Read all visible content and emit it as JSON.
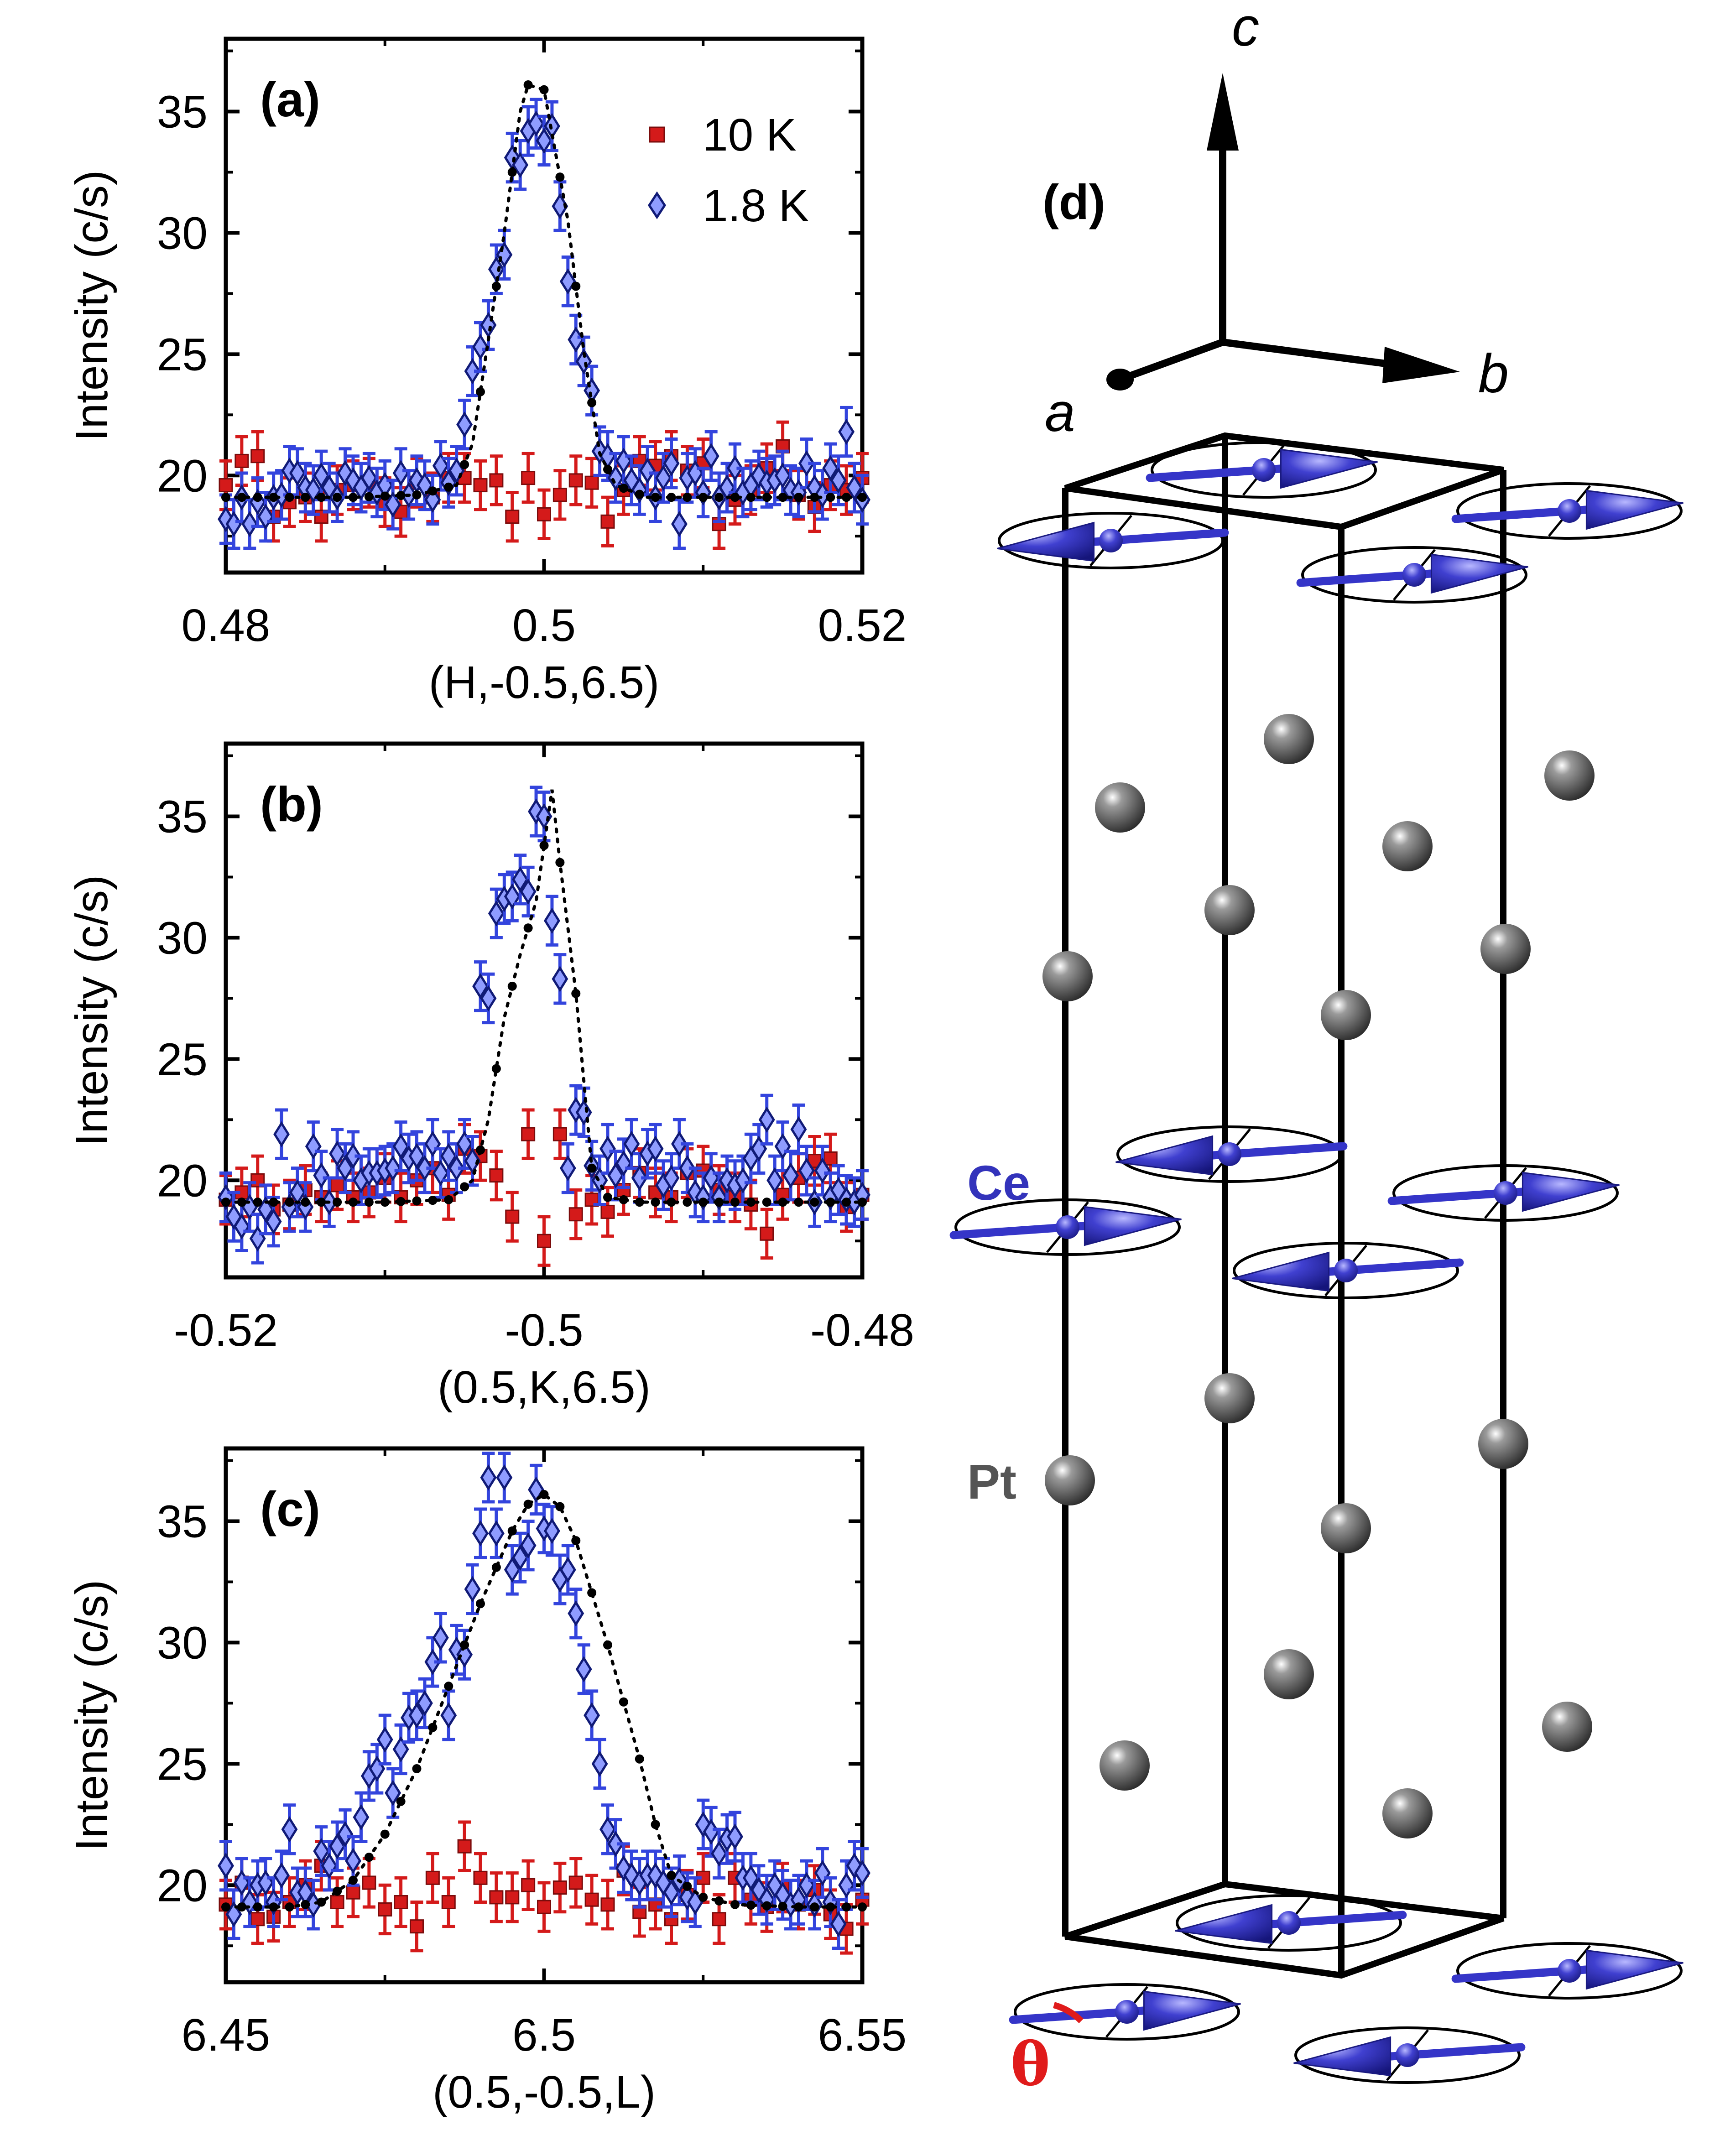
{
  "colors": {
    "series_10K": "#d41a1a",
    "series_10K_dark": "#7a0c0c",
    "series_1p8K": "#3344dd",
    "series_1p8K_dark": "#101a77",
    "fit": "#000000",
    "spin": "#3535c8",
    "atom": "#5a5a5a",
    "theta": "#e01b1b"
  },
  "legend": {
    "items": [
      {
        "label": "10 K",
        "marker": "square"
      },
      {
        "label": "1.8 K",
        "marker": "diamond"
      }
    ]
  },
  "chart_data": [
    {
      "panel": "(a)",
      "type": "scatter",
      "xlabel": "(H,-0.5,6.5)",
      "ylabel": "Intensity (c/s)",
      "xlim": [
        0.48,
        0.52
      ],
      "ylim": [
        16,
        38
      ],
      "xticks": [
        "0.48",
        "0.5",
        "0.52"
      ],
      "yticks": [
        "20",
        "25",
        "30",
        "35"
      ],
      "series": [
        {
          "name": "10 K",
          "marker": "square",
          "x": [
            0.48,
            0.481,
            0.482,
            0.483,
            0.484,
            0.485,
            0.486,
            0.487,
            0.488,
            0.489,
            0.49,
            0.491,
            0.492,
            0.493,
            0.494,
            0.495,
            0.496,
            0.497,
            0.498,
            0.499,
            0.5,
            0.501,
            0.502,
            0.503,
            0.504,
            0.505,
            0.506,
            0.507,
            0.508,
            0.509,
            0.51,
            0.511,
            0.512,
            0.513,
            0.514,
            0.515,
            0.516,
            0.517,
            0.518,
            0.519,
            0.52
          ],
          "y": [
            19.6,
            20.6,
            20.8,
            18.3,
            18.9,
            19.1,
            18.3,
            19.4,
            19.6,
            19.7,
            18.9,
            18.5,
            19.7,
            19.1,
            19.9,
            19.9,
            19.6,
            19.8,
            18.3,
            19.9,
            18.4,
            19.2,
            19.8,
            19.7,
            18.1,
            19.4,
            20.6,
            20.4,
            20.8,
            20.2,
            20.5,
            18.0,
            19.0,
            19.4,
            20.3,
            21.2,
            19.2,
            18.7,
            19.6,
            19.4,
            19.9
          ],
          "err": 1.0
        },
        {
          "name": "1.8 K",
          "marker": "diamond",
          "x": [
            0.48,
            0.4805,
            0.481,
            0.4815,
            0.482,
            0.4825,
            0.483,
            0.4835,
            0.484,
            0.4845,
            0.485,
            0.4855,
            0.486,
            0.4865,
            0.487,
            0.4875,
            0.488,
            0.4885,
            0.489,
            0.4895,
            0.49,
            0.4905,
            0.491,
            0.4915,
            0.492,
            0.4925,
            0.493,
            0.4935,
            0.494,
            0.4945,
            0.495,
            0.4955,
            0.496,
            0.4965,
            0.497,
            0.4975,
            0.498,
            0.4985,
            0.499,
            0.4995,
            0.5,
            0.5005,
            0.501,
            0.5015,
            0.502,
            0.5025,
            0.503,
            0.5035,
            0.504,
            0.5045,
            0.505,
            0.5055,
            0.506,
            0.5065,
            0.507,
            0.5075,
            0.508,
            0.5085,
            0.509,
            0.5095,
            0.51,
            0.5105,
            0.511,
            0.5115,
            0.512,
            0.5125,
            0.513,
            0.5135,
            0.514,
            0.5145,
            0.515,
            0.5155,
            0.516,
            0.5165,
            0.517,
            0.5175,
            0.518,
            0.5185,
            0.519,
            0.5195,
            0.52
          ],
          "y": [
            18.2,
            18.0,
            19.1,
            18.0,
            18.9,
            18.3,
            19.1,
            19.2,
            20.2,
            20.1,
            19.5,
            19.4,
            20.0,
            19.5,
            19.1,
            20.1,
            19.8,
            19.5,
            19.9,
            19.3,
            19.6,
            18.8,
            20.1,
            19.2,
            19.8,
            19.6,
            19.0,
            20.4,
            19.7,
            20.2,
            22.1,
            24.3,
            25.3,
            26.2,
            28.5,
            29.1,
            33.1,
            32.8,
            34.2,
            34.5,
            33.8,
            34.4,
            31.1,
            28.0,
            25.6,
            24.7,
            23.5,
            21.0,
            20.8,
            19.9,
            20.6,
            19.8,
            19.4,
            20.2,
            19.1,
            19.9,
            20.5,
            18.0,
            19.9,
            20.1,
            19.3,
            20.8,
            19.1,
            19.5,
            20.3,
            19.3,
            19.6,
            20.0,
            19.7,
            19.8,
            20.0,
            19.4,
            19.3,
            20.5,
            19.5,
            19.2,
            20.3,
            19.8,
            21.8,
            19.5,
            19.0
          ],
          "err": 1.0
        },
        {
          "name": "",
          "marker": "dotted-line",
          "x": [
            0.48,
            0.484,
            0.488,
            0.492,
            0.4945,
            0.4955,
            0.4965,
            0.4975,
            0.4985,
            0.499,
            0.5,
            0.5015,
            0.5025,
            0.5035,
            0.5045,
            0.5065,
            0.509,
            0.512,
            0.516,
            0.52
          ],
          "y": [
            19.1,
            19.1,
            19.1,
            19.2,
            19.6,
            21.3,
            25.6,
            30.0,
            35.0,
            36.1,
            35.9,
            30.5,
            25.1,
            20.9,
            19.6,
            19.1,
            19.1,
            19.1,
            19.1,
            19.1
          ]
        }
      ]
    },
    {
      "panel": "(b)",
      "type": "scatter",
      "xlabel": "(0.5,K,6.5)",
      "ylabel": "Intensity (c/s)",
      "xlim": [
        -0.52,
        -0.48
      ],
      "ylim": [
        16,
        38
      ],
      "xticks": [
        "-0.52",
        "-0.5",
        "-0.48"
      ],
      "yticks": [
        "20",
        "25",
        "30",
        "35"
      ],
      "series": [
        {
          "name": "10 K",
          "marker": "square",
          "x": [
            -0.52,
            -0.519,
            -0.518,
            -0.517,
            -0.516,
            -0.515,
            -0.514,
            -0.513,
            -0.512,
            -0.511,
            -0.51,
            -0.509,
            -0.508,
            -0.507,
            -0.506,
            -0.505,
            -0.504,
            -0.503,
            -0.502,
            -0.501,
            -0.5,
            -0.499,
            -0.498,
            -0.497,
            -0.496,
            -0.495,
            -0.494,
            -0.493,
            -0.492,
            -0.491,
            -0.49,
            -0.489,
            -0.488,
            -0.487,
            -0.486,
            -0.485,
            -0.484,
            -0.483,
            -0.482,
            -0.481,
            -0.48
          ],
          "y": [
            19.2,
            19.5,
            20.0,
            18.8,
            19.0,
            19.6,
            19.3,
            19.8,
            19.3,
            19.5,
            20.1,
            19.3,
            20.0,
            20.5,
            19.4,
            21.3,
            21.0,
            20.2,
            18.5,
            21.9,
            17.5,
            21.9,
            18.6,
            19.2,
            18.7,
            19.6,
            20.3,
            19.5,
            19.3,
            20.3,
            20.4,
            19.6,
            19.3,
            19.0,
            17.8,
            19.4,
            20.1,
            20.8,
            20.9,
            18.9,
            19.4
          ],
          "err": 1.0
        },
        {
          "name": "1.8 K",
          "marker": "diamond",
          "x": [
            -0.52,
            -0.5195,
            -0.519,
            -0.5185,
            -0.518,
            -0.5175,
            -0.517,
            -0.5165,
            -0.516,
            -0.5155,
            -0.515,
            -0.5145,
            -0.514,
            -0.5135,
            -0.513,
            -0.5125,
            -0.512,
            -0.5115,
            -0.511,
            -0.5105,
            -0.51,
            -0.5095,
            -0.509,
            -0.5085,
            -0.508,
            -0.5075,
            -0.507,
            -0.5065,
            -0.506,
            -0.5055,
            -0.505,
            -0.5045,
            -0.504,
            -0.5035,
            -0.503,
            -0.5025,
            -0.502,
            -0.5015,
            -0.501,
            -0.5005,
            -0.5,
            -0.4995,
            -0.499,
            -0.4985,
            -0.498,
            -0.4975,
            -0.497,
            -0.4965,
            -0.496,
            -0.4955,
            -0.495,
            -0.4945,
            -0.494,
            -0.4935,
            -0.493,
            -0.4925,
            -0.492,
            -0.4915,
            -0.491,
            -0.4905,
            -0.49,
            -0.4895,
            -0.489,
            -0.4885,
            -0.488,
            -0.4875,
            -0.487,
            -0.4865,
            -0.486,
            -0.4855,
            -0.485,
            -0.4845,
            -0.484,
            -0.4835,
            -0.483,
            -0.4825,
            -0.482,
            -0.4815,
            -0.481,
            -0.4805,
            -0.48
          ],
          "y": [
            19.3,
            18.5,
            18.1,
            18.9,
            17.6,
            18.8,
            18.3,
            21.9,
            18.9,
            19.5,
            18.9,
            21.4,
            20.2,
            19.1,
            21.1,
            20.5,
            21.0,
            20.0,
            20.3,
            20.3,
            20.4,
            20.5,
            21.4,
            20.9,
            21.0,
            20.5,
            21.5,
            20.3,
            21.0,
            20.5,
            21.5,
            20.8,
            28.0,
            27.5,
            31.0,
            31.6,
            31.7,
            32.4,
            31.9,
            35.2,
            35.0,
            30.7,
            28.3,
            20.5,
            22.9,
            22.8,
            20.6,
            20.0,
            21.3,
            20.2,
            20.7,
            21.5,
            20.1,
            21.1,
            21.3,
            19.8,
            20.1,
            21.5,
            20.5,
            19.5,
            19.3,
            20.1,
            19.3,
            20.0,
            19.8,
            20.0,
            20.9,
            21.3,
            22.5,
            20.0,
            21.4,
            20.2,
            22.1,
            20.4,
            19.1,
            20.4,
            19.3,
            19.6,
            19.2,
            19.1,
            19.4
          ],
          "err": 1.0
        },
        {
          "name": "",
          "marker": "dotted-line",
          "x": [
            -0.52,
            -0.515,
            -0.51,
            -0.506,
            -0.5045,
            -0.5035,
            -0.5025,
            -0.5015,
            -0.5005,
            -0.4995,
            -0.499,
            -0.498,
            -0.497,
            -0.496,
            -0.494,
            -0.49,
            -0.486,
            -0.482,
            -0.48
          ],
          "y": [
            19.1,
            19.1,
            19.1,
            19.2,
            20.0,
            22.5,
            26.7,
            29.3,
            31.5,
            36.1,
            33.1,
            27.7,
            20.5,
            19.3,
            19.1,
            19.1,
            19.1,
            19.1,
            19.1
          ]
        }
      ]
    },
    {
      "panel": "(c)",
      "type": "scatter",
      "xlabel": "(0.5,-0.5,L)",
      "ylabel": "Intensity (c/s)",
      "xlim": [
        6.45,
        6.55
      ],
      "ylim": [
        16,
        38
      ],
      "xticks": [
        "6.45",
        "6.5",
        "6.55"
      ],
      "yticks": [
        "20",
        "25",
        "30",
        "35"
      ],
      "series": [
        {
          "name": "10 K",
          "marker": "square",
          "x": [
            6.45,
            6.4525,
            6.455,
            6.4575,
            6.46,
            6.4625,
            6.465,
            6.4675,
            6.47,
            6.4725,
            6.475,
            6.4775,
            6.48,
            6.4825,
            6.485,
            6.4875,
            6.49,
            6.4925,
            6.495,
            6.4975,
            6.5,
            6.5025,
            6.505,
            6.5075,
            6.51,
            6.5125,
            6.515,
            6.5175,
            6.52,
            6.5225,
            6.525,
            6.5275,
            6.53,
            6.5325,
            6.535,
            6.5375,
            6.54,
            6.5425,
            6.545,
            6.5475,
            6.55
          ],
          "y": [
            19.2,
            20.1,
            18.6,
            18.7,
            19.3,
            20.0,
            20.8,
            19.3,
            19.7,
            20.1,
            19.0,
            19.3,
            18.3,
            20.3,
            19.3,
            21.6,
            20.3,
            19.5,
            19.5,
            20.0,
            19.1,
            19.9,
            20.1,
            19.4,
            19.2,
            20.6,
            18.9,
            19.2,
            18.6,
            19.6,
            20.3,
            18.6,
            20.3,
            19.4,
            19.1,
            19.9,
            19.2,
            19.8,
            18.8,
            18.2,
            19.4
          ],
          "err": 1.0
        },
        {
          "name": "1.8 K",
          "marker": "diamond",
          "x": [
            6.45,
            6.45125,
            6.4525,
            6.45375,
            6.455,
            6.45625,
            6.4575,
            6.45875,
            6.46,
            6.46125,
            6.4625,
            6.46375,
            6.465,
            6.46625,
            6.4675,
            6.46875,
            6.47,
            6.47125,
            6.4725,
            6.47375,
            6.475,
            6.47625,
            6.4775,
            6.47875,
            6.48,
            6.48125,
            6.4825,
            6.48375,
            6.485,
            6.48625,
            6.4875,
            6.48875,
            6.49,
            6.49125,
            6.4925,
            6.49375,
            6.495,
            6.49625,
            6.4975,
            6.49875,
            6.5,
            6.50125,
            6.5025,
            6.50375,
            6.505,
            6.50625,
            6.5075,
            6.50875,
            6.51,
            6.51125,
            6.5125,
            6.51375,
            6.515,
            6.51625,
            6.5175,
            6.51875,
            6.52,
            6.52125,
            6.5225,
            6.52375,
            6.525,
            6.52625,
            6.5275,
            6.52875,
            6.53,
            6.53125,
            6.5325,
            6.53375,
            6.535,
            6.53625,
            6.5375,
            6.53875,
            6.54,
            6.54125,
            6.5425,
            6.54375,
            6.545,
            6.54625,
            6.5475,
            6.54875,
            6.55
          ],
          "y": [
            20.8,
            18.8,
            20.1,
            19.3,
            20.0,
            20.1,
            19.3,
            20.4,
            22.3,
            19.7,
            19.7,
            19.2,
            21.4,
            20.8,
            21.6,
            22.1,
            21.0,
            22.8,
            24.5,
            24.8,
            26.0,
            23.8,
            25.6,
            26.9,
            27.0,
            27.5,
            29.2,
            30.2,
            27.0,
            29.7,
            29.5,
            32.2,
            34.5,
            36.8,
            34.5,
            36.8,
            33.0,
            33.5,
            34.0,
            36.3,
            34.7,
            34.6,
            32.6,
            33.0,
            31.2,
            28.9,
            27.0,
            25.0,
            22.3,
            21.7,
            20.7,
            20.4,
            20.1,
            20.4,
            20.4,
            20.1,
            19.7,
            20.2,
            19.5,
            19.3,
            22.5,
            22.2,
            21.3,
            21.9,
            22.0,
            20.3,
            20.3,
            19.8,
            19.4,
            20.0,
            19.6,
            19.2,
            19.4,
            20.0,
            19.2,
            20.5,
            19.3,
            18.4,
            20.0,
            20.8,
            20.5
          ],
          "err": 1.0
        },
        {
          "name": "",
          "marker": "dotted-line",
          "x": [
            6.45,
            6.46,
            6.465,
            6.47,
            6.475,
            6.48,
            6.485,
            6.49,
            6.495,
            6.4975,
            6.5,
            6.5025,
            6.505,
            6.51,
            6.515,
            6.5175,
            6.52,
            6.525,
            6.53,
            6.54,
            6.55
          ],
          "y": [
            19.1,
            19.1,
            19.3,
            20.2,
            22.1,
            24.8,
            28.2,
            31.6,
            34.6,
            35.7,
            36.1,
            35.6,
            34.2,
            29.9,
            25.2,
            22.5,
            20.4,
            19.5,
            19.2,
            19.1,
            19.1
          ]
        }
      ]
    }
  ],
  "structure": {
    "panel": "(d)",
    "axes": {
      "c": "c",
      "a": "a",
      "b": "b"
    },
    "labels": {
      "ce": "Ce",
      "pt": "Pt",
      "theta": "θ"
    }
  }
}
